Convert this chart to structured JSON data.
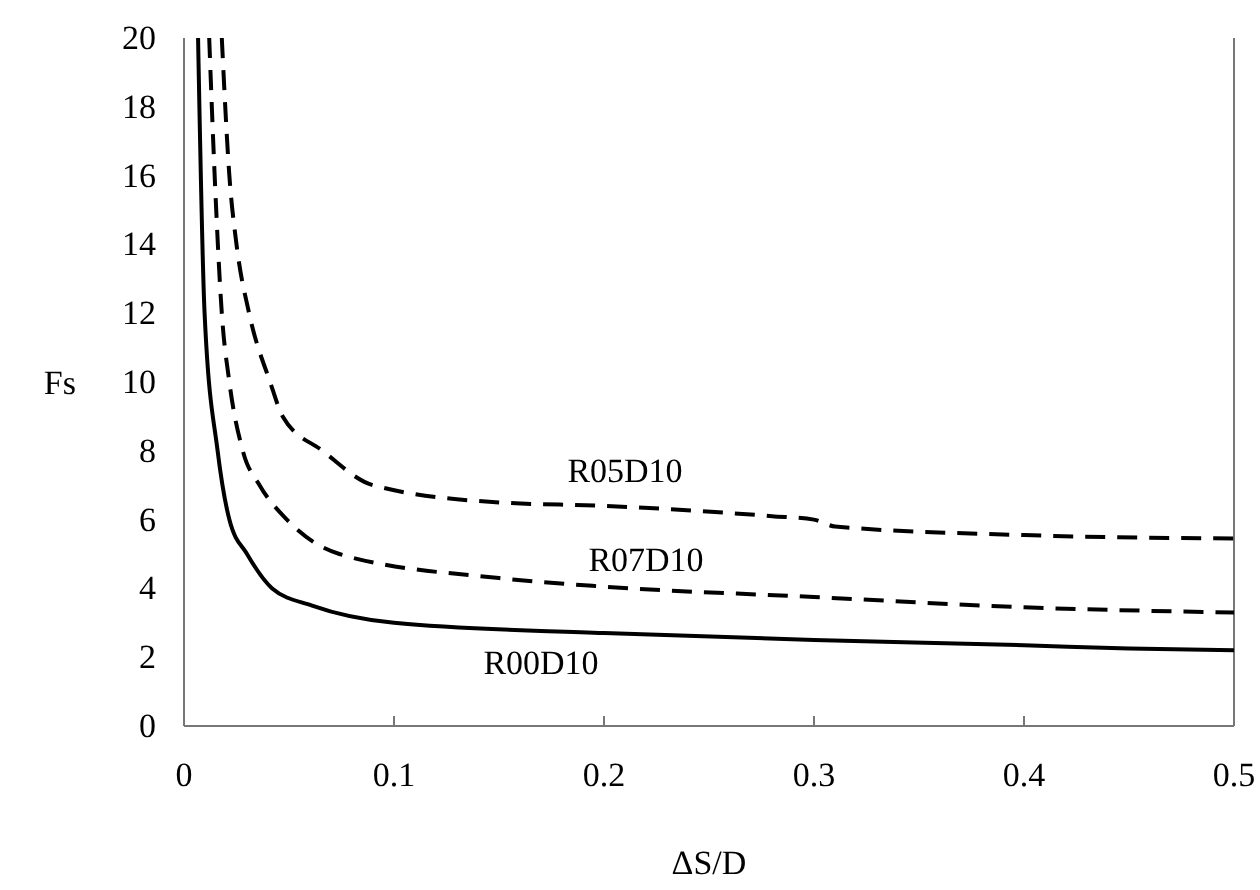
{
  "chart_data": {
    "type": "line",
    "xlabel": "ΔS/D",
    "ylabel": "Fs",
    "xlim": [
      0,
      0.5
    ],
    "ylim": [
      0,
      20
    ],
    "xticks": [
      0,
      0.1,
      0.2,
      0.3,
      0.4,
      0.5
    ],
    "yticks": [
      0,
      2,
      4,
      6,
      8,
      10,
      12,
      14,
      16,
      18,
      20
    ],
    "marker": "none",
    "series": [
      {
        "name": "R05D10",
        "color": "#000000",
        "line_style": "dashed",
        "x": [
          0.018,
          0.0216,
          0.025,
          0.031,
          0.041,
          0.047,
          0.066,
          0.09,
          0.15,
          0.2,
          0.28,
          0.3,
          0.31,
          0.4,
          0.5
        ],
        "values": [
          20,
          16,
          14,
          12,
          10,
          9,
          8,
          7,
          6.5,
          6.4,
          6.1,
          6.0,
          5.8,
          5.55,
          5.45
        ]
      },
      {
        "name": "R07D10",
        "color": "#000000",
        "line_style": "dashed",
        "x": [
          0.012,
          0.0146,
          0.018,
          0.0216,
          0.028,
          0.036,
          0.049,
          0.074,
          0.15,
          0.2,
          0.3,
          0.4,
          0.5
        ],
        "values": [
          20,
          16,
          12,
          10,
          8,
          7,
          6,
          5,
          4.3,
          4.05,
          3.75,
          3.45,
          3.3
        ]
      },
      {
        "name": "R00D10",
        "color": "#000000",
        "line_style": "solid",
        "x": [
          0.0067,
          0.0098,
          0.016,
          0.0216,
          0.03,
          0.042,
          0.061,
          0.1,
          0.2,
          0.3,
          0.4,
          0.45,
          0.5
        ],
        "values": [
          20,
          12,
          8,
          6,
          5,
          4,
          3.5,
          3,
          2.7,
          2.5,
          2.35,
          2.25,
          2.2
        ]
      }
    ]
  }
}
